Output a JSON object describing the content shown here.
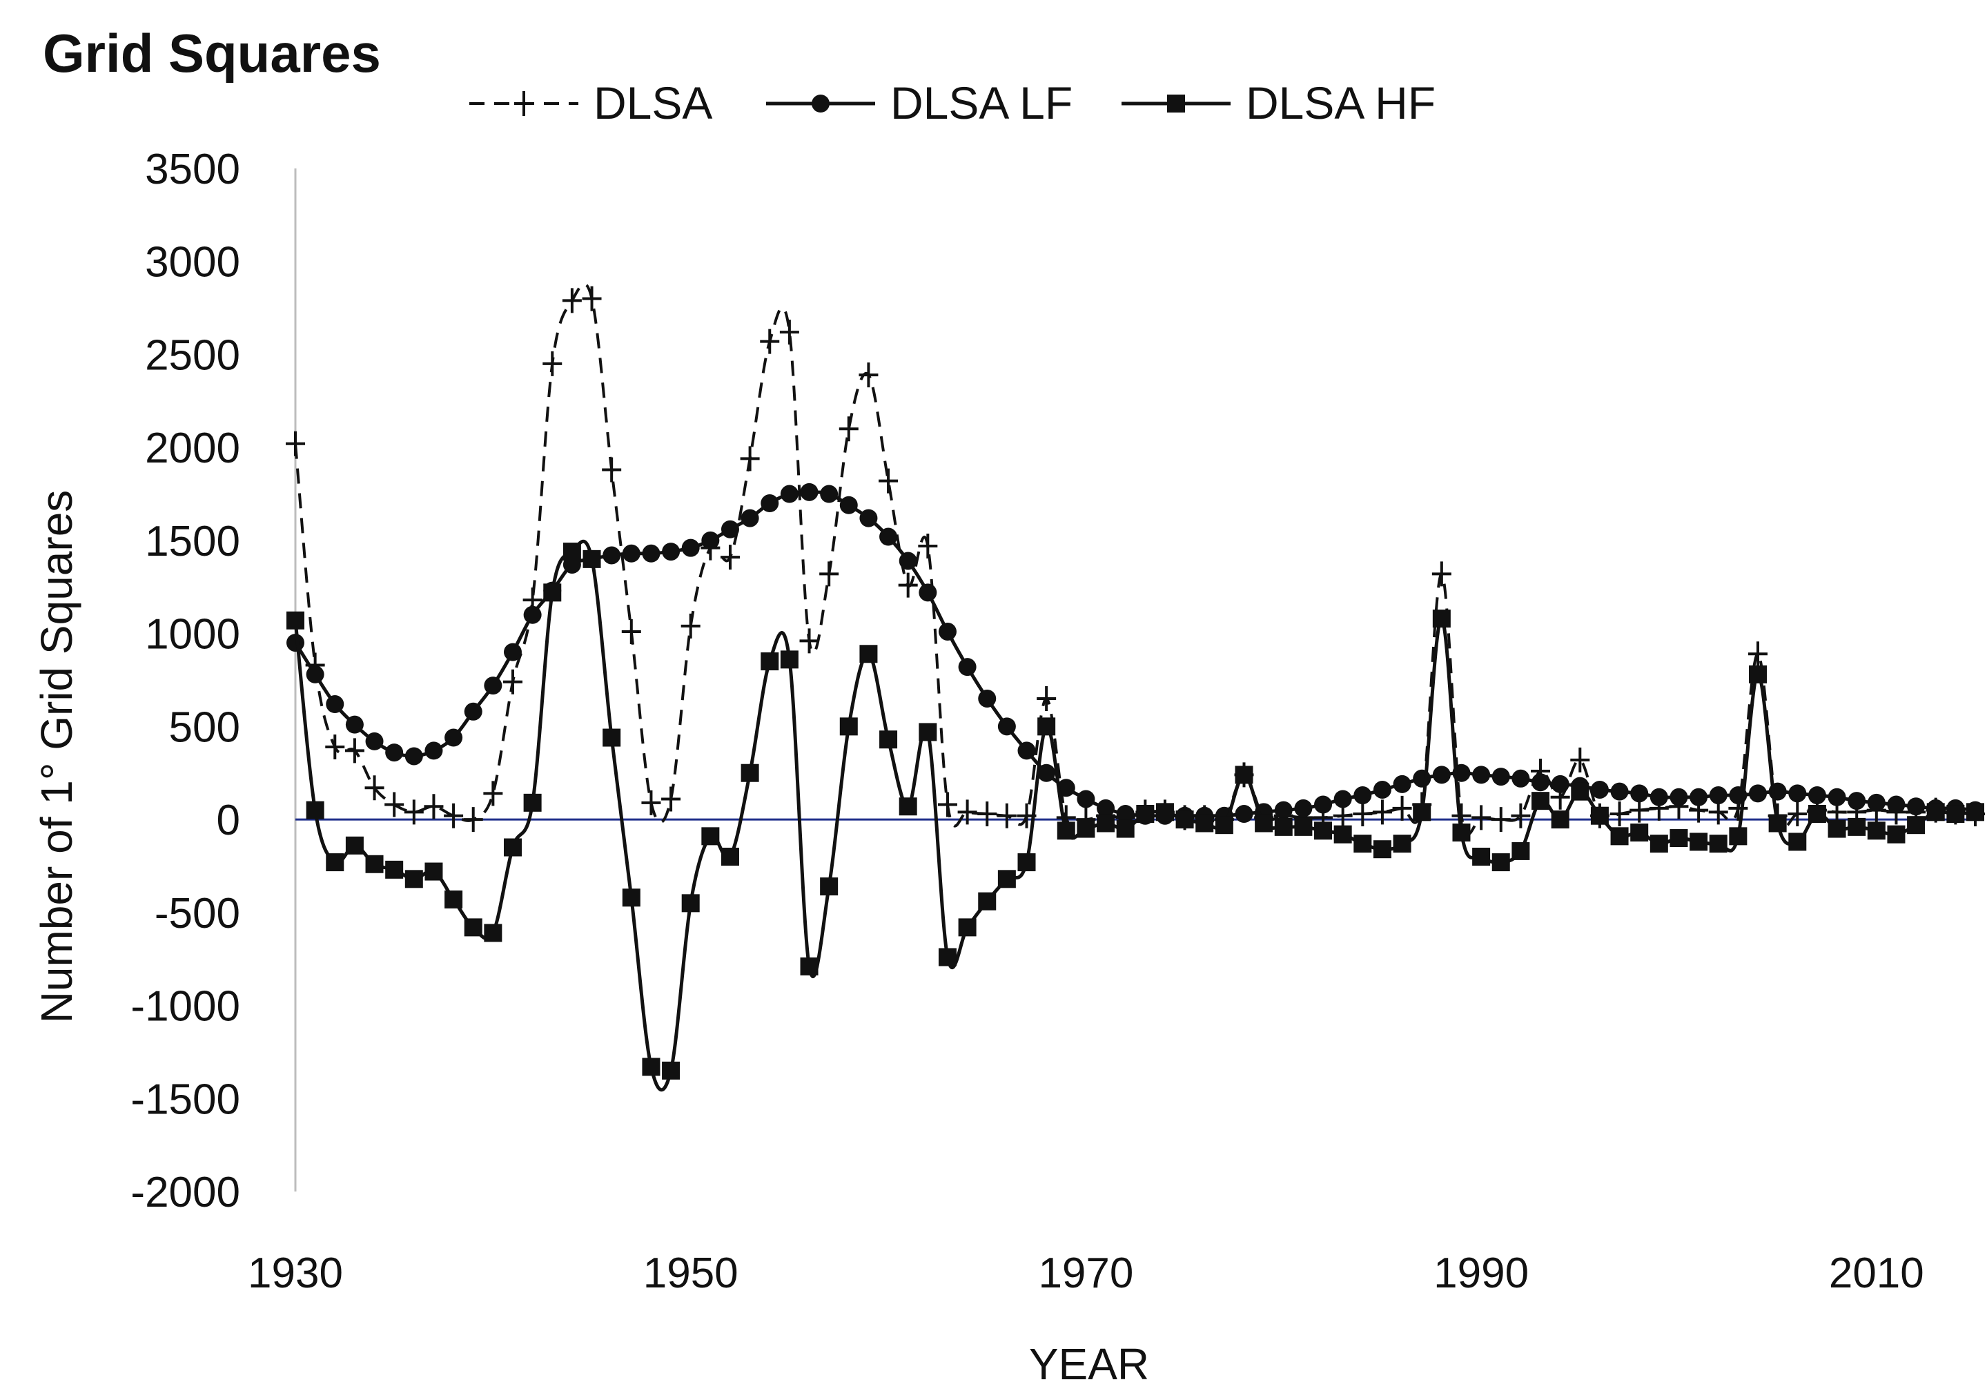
{
  "chart_data": {
    "type": "line",
    "title": "Grid Squares",
    "xlabel": "YEAR",
    "ylabel": "Number of 1° Grid Squares",
    "xlim": [
      1930,
      2015
    ],
    "ylim": [
      -2000,
      3500
    ],
    "xticks": [
      1930,
      1950,
      1970,
      1990,
      2010
    ],
    "yticks": [
      3500,
      3000,
      2500,
      2000,
      1500,
      1000,
      500,
      0,
      -500,
      -1000,
      -1500,
      -2000
    ],
    "grid": false,
    "legend": "top-center",
    "zero_line_color": "#1f2f8a",
    "series": [
      {
        "name": "DLSA",
        "marker": "plus",
        "line": "dashed",
        "color": "#111111",
        "x": [
          1930,
          1931,
          1932,
          1933,
          1934,
          1935,
          1936,
          1937,
          1938,
          1939,
          1940,
          1941,
          1942,
          1943,
          1944,
          1945,
          1946,
          1947,
          1948,
          1949,
          1950,
          1951,
          1952,
          1953,
          1954,
          1955,
          1956,
          1957,
          1958,
          1959,
          1960,
          1961,
          1962,
          1963,
          1964,
          1965,
          1966,
          1967,
          1968,
          1969,
          1970,
          1971,
          1972,
          1973,
          1974,
          1975,
          1976,
          1977,
          1978,
          1979,
          1980,
          1981,
          1982,
          1983,
          1984,
          1985,
          1986,
          1987,
          1988,
          1989,
          1990,
          1991,
          1992,
          1993,
          1994,
          1995,
          1996,
          1997,
          1998,
          1999,
          2000,
          2001,
          2002,
          2003,
          2004,
          2005,
          2006,
          2007,
          2008,
          2009,
          2010,
          2011,
          2012,
          2013,
          2014,
          2015
        ],
        "values": [
          2020,
          830,
          390,
          370,
          170,
          80,
          40,
          70,
          20,
          0,
          140,
          740,
          1180,
          2450,
          2790,
          2800,
          1880,
          1010,
          90,
          110,
          1040,
          1460,
          1410,
          1940,
          2570,
          2620,
          960,
          1320,
          2100,
          2390,
          1820,
          1260,
          1470,
          80,
          40,
          30,
          20,
          20,
          650,
          10,
          0,
          20,
          10,
          40,
          40,
          10,
          10,
          0,
          240,
          10,
          20,
          10,
          10,
          20,
          30,
          40,
          60,
          80,
          1320,
          20,
          10,
          0,
          20,
          260,
          120,
          320,
          20,
          30,
          50,
          60,
          70,
          50,
          40,
          60,
          890,
          20,
          30,
          50,
          40,
          40,
          50,
          40,
          40,
          50,
          40,
          30
        ]
      },
      {
        "name": "DLSA LF",
        "marker": "circle",
        "line": "solid",
        "color": "#111111",
        "x": [
          1930,
          1931,
          1932,
          1933,
          1934,
          1935,
          1936,
          1937,
          1938,
          1939,
          1940,
          1941,
          1942,
          1943,
          1944,
          1945,
          1946,
          1947,
          1948,
          1949,
          1950,
          1951,
          1952,
          1953,
          1954,
          1955,
          1956,
          1957,
          1958,
          1959,
          1960,
          1961,
          1962,
          1963,
          1964,
          1965,
          1966,
          1967,
          1968,
          1969,
          1970,
          1971,
          1972,
          1973,
          1974,
          1975,
          1976,
          1977,
          1978,
          1979,
          1980,
          1981,
          1982,
          1983,
          1984,
          1985,
          1986,
          1987,
          1988,
          1989,
          1990,
          1991,
          1992,
          1993,
          1994,
          1995,
          1996,
          1997,
          1998,
          1999,
          2000,
          2001,
          2002,
          2003,
          2004,
          2005,
          2006,
          2007,
          2008,
          2009,
          2010,
          2011,
          2012,
          2013,
          2014,
          2015
        ],
        "values": [
          950,
          780,
          620,
          510,
          420,
          360,
          340,
          370,
          440,
          580,
          720,
          900,
          1100,
          1230,
          1370,
          1400,
          1420,
          1430,
          1430,
          1440,
          1460,
          1500,
          1560,
          1620,
          1700,
          1750,
          1760,
          1750,
          1690,
          1620,
          1520,
          1390,
          1220,
          1010,
          820,
          650,
          500,
          370,
          250,
          170,
          110,
          60,
          30,
          20,
          20,
          20,
          20,
          20,
          30,
          40,
          50,
          60,
          80,
          110,
          130,
          160,
          190,
          220,
          240,
          250,
          240,
          230,
          220,
          200,
          190,
          180,
          160,
          150,
          140,
          120,
          120,
          120,
          130,
          130,
          140,
          150,
          140,
          130,
          120,
          100,
          90,
          80,
          70,
          60,
          60,
          50
        ]
      },
      {
        "name": "DLSA HF",
        "marker": "square",
        "line": "solid",
        "color": "#111111",
        "x": [
          1930,
          1931,
          1932,
          1933,
          1934,
          1935,
          1936,
          1937,
          1938,
          1939,
          1940,
          1941,
          1942,
          1943,
          1944,
          1945,
          1946,
          1947,
          1948,
          1949,
          1950,
          1951,
          1952,
          1953,
          1954,
          1955,
          1956,
          1957,
          1958,
          1959,
          1960,
          1961,
          1962,
          1963,
          1964,
          1965,
          1966,
          1967,
          1968,
          1969,
          1970,
          1971,
          1972,
          1973,
          1974,
          1975,
          1976,
          1977,
          1978,
          1979,
          1980,
          1981,
          1982,
          1983,
          1984,
          1985,
          1986,
          1987,
          1988,
          1989,
          1990,
          1991,
          1992,
          1993,
          1994,
          1995,
          1996,
          1997,
          1998,
          1999,
          2000,
          2001,
          2002,
          2003,
          2004,
          2005,
          2006,
          2007,
          2008,
          2009,
          2010,
          2011,
          2012,
          2013,
          2014,
          2015
        ],
        "values": [
          1070,
          50,
          -230,
          -140,
          -240,
          -270,
          -320,
          -280,
          -430,
          -580,
          -610,
          -150,
          90,
          1220,
          1440,
          1400,
          440,
          -420,
          -1330,
          -1350,
          -450,
          -90,
          -200,
          250,
          850,
          860,
          -790,
          -360,
          500,
          890,
          430,
          70,
          470,
          -740,
          -580,
          -440,
          -320,
          -230,
          500,
          -60,
          -50,
          -20,
          -50,
          30,
          40,
          0,
          -20,
          -30,
          240,
          -20,
          -40,
          -40,
          -60,
          -80,
          -130,
          -160,
          -130,
          40,
          1080,
          -70,
          -200,
          -230,
          -170,
          100,
          0,
          150,
          20,
          -90,
          -70,
          -130,
          -100,
          -120,
          -130,
          -90,
          780,
          -20,
          -120,
          30,
          -50,
          -40,
          -60,
          -80,
          -30,
          40,
          30,
          40
        ]
      }
    ]
  }
}
